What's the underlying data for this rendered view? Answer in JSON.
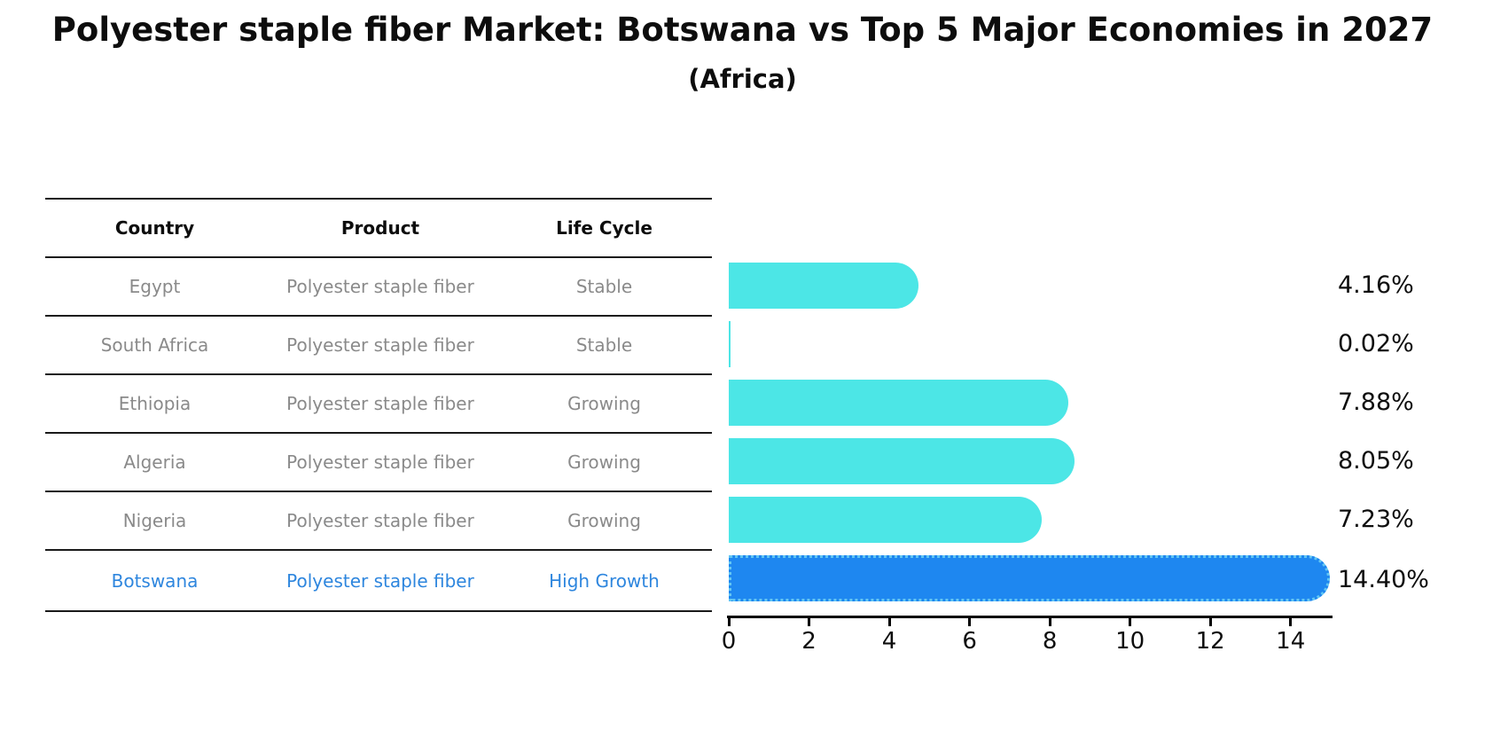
{
  "header": {
    "title": "Polyester staple fiber Market: Botswana vs Top 5 Major Economies in 2027",
    "subtitle": "(Africa)"
  },
  "table": {
    "columns": [
      "Country",
      "Product",
      "Life Cycle"
    ],
    "rows": [
      {
        "country": "Egypt",
        "product": "Polyester staple fiber",
        "life_cycle": "Stable",
        "highlight": false
      },
      {
        "country": "South Africa",
        "product": "Polyester staple fiber",
        "life_cycle": "Stable",
        "highlight": false
      },
      {
        "country": "Ethiopia",
        "product": "Polyester staple fiber",
        "life_cycle": "Growing",
        "highlight": false
      },
      {
        "country": "Algeria",
        "product": "Polyester staple fiber",
        "life_cycle": "Growing",
        "highlight": false
      },
      {
        "country": "Nigeria",
        "product": "Polyester staple fiber",
        "life_cycle": "Growing",
        "highlight": false
      },
      {
        "country": "Botswana",
        "product": "Polyester staple fiber",
        "life_cycle": "High Growth",
        "highlight": true
      }
    ]
  },
  "chart_data": {
    "type": "bar",
    "orientation": "horizontal",
    "title": "Polyester staple fiber Market: Botswana vs Top 5 Major Economies in 2027",
    "subtitle": "(Africa)",
    "categories": [
      "Egypt",
      "South Africa",
      "Ethiopia",
      "Algeria",
      "Nigeria",
      "Botswana"
    ],
    "values": [
      4.16,
      0.02,
      7.88,
      8.05,
      7.23,
      14.4
    ],
    "value_labels": [
      "4.16%",
      "0.02%",
      "7.88%",
      "8.05%",
      "7.23%",
      "14.40%"
    ],
    "xlabel": "",
    "ylabel": "",
    "xlim": [
      0,
      15
    ],
    "x_ticks": [
      0,
      2,
      4,
      6,
      8,
      10,
      12,
      14
    ],
    "grid": false,
    "legend": false,
    "highlight_index": 5,
    "colors": {
      "bar": "#4CE6E6",
      "highlight_bar": "#1E87F0",
      "highlight_border": "#62C6F2",
      "highlight_text": "#2E86DE",
      "table_text": "#8a8a8a",
      "axis": "#000000"
    }
  }
}
